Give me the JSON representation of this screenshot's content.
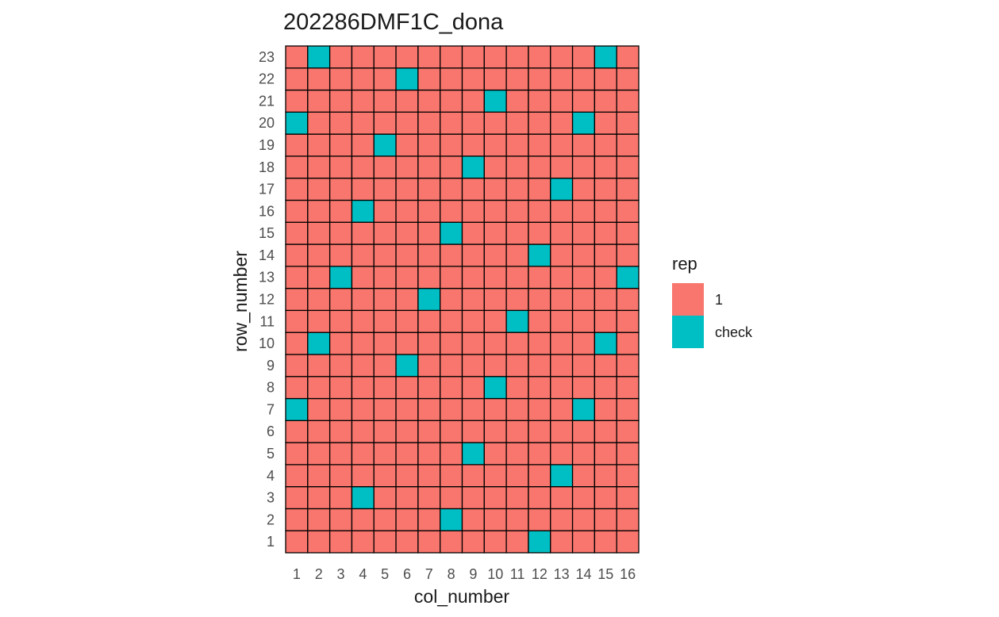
{
  "chart_data": {
    "type": "heatmap",
    "title": "202286DMF1C_dona",
    "xlabel": "col_number",
    "ylabel": "row_number",
    "x_ticks": [
      "1",
      "2",
      "3",
      "4",
      "5",
      "6",
      "7",
      "8",
      "9",
      "10",
      "11",
      "12",
      "13",
      "14",
      "15",
      "16"
    ],
    "y_ticks": [
      "1",
      "2",
      "3",
      "4",
      "5",
      "6",
      "7",
      "8",
      "9",
      "10",
      "11",
      "12",
      "13",
      "14",
      "15",
      "16",
      "17",
      "18",
      "19",
      "20",
      "21",
      "22",
      "23"
    ],
    "n_cols": 16,
    "n_rows": 23,
    "default_category": "1",
    "check_cells": [
      {
        "col": 2,
        "row": 23
      },
      {
        "col": 15,
        "row": 23
      },
      {
        "col": 6,
        "row": 22
      },
      {
        "col": 10,
        "row": 21
      },
      {
        "col": 1,
        "row": 20
      },
      {
        "col": 14,
        "row": 20
      },
      {
        "col": 5,
        "row": 19
      },
      {
        "col": 9,
        "row": 18
      },
      {
        "col": 13,
        "row": 17
      },
      {
        "col": 4,
        "row": 16
      },
      {
        "col": 8,
        "row": 15
      },
      {
        "col": 12,
        "row": 14
      },
      {
        "col": 3,
        "row": 13
      },
      {
        "col": 16,
        "row": 13
      },
      {
        "col": 7,
        "row": 12
      },
      {
        "col": 11,
        "row": 11
      },
      {
        "col": 2,
        "row": 10
      },
      {
        "col": 15,
        "row": 10
      },
      {
        "col": 6,
        "row": 9
      },
      {
        "col": 10,
        "row": 8
      },
      {
        "col": 1,
        "row": 7
      },
      {
        "col": 14,
        "row": 7
      },
      {
        "col": 9,
        "row": 5
      },
      {
        "col": 13,
        "row": 4
      },
      {
        "col": 4,
        "row": 3
      },
      {
        "col": 8,
        "row": 2
      },
      {
        "col": 12,
        "row": 1
      }
    ],
    "legend": {
      "title": "rep",
      "placement": "right",
      "items": [
        {
          "label": "1",
          "color": "#F8766D"
        },
        {
          "label": "check",
          "color": "#00BFC4"
        }
      ]
    },
    "colors": {
      "1": "#F8766D",
      "check": "#00BFC4",
      "border": "#000000"
    }
  }
}
